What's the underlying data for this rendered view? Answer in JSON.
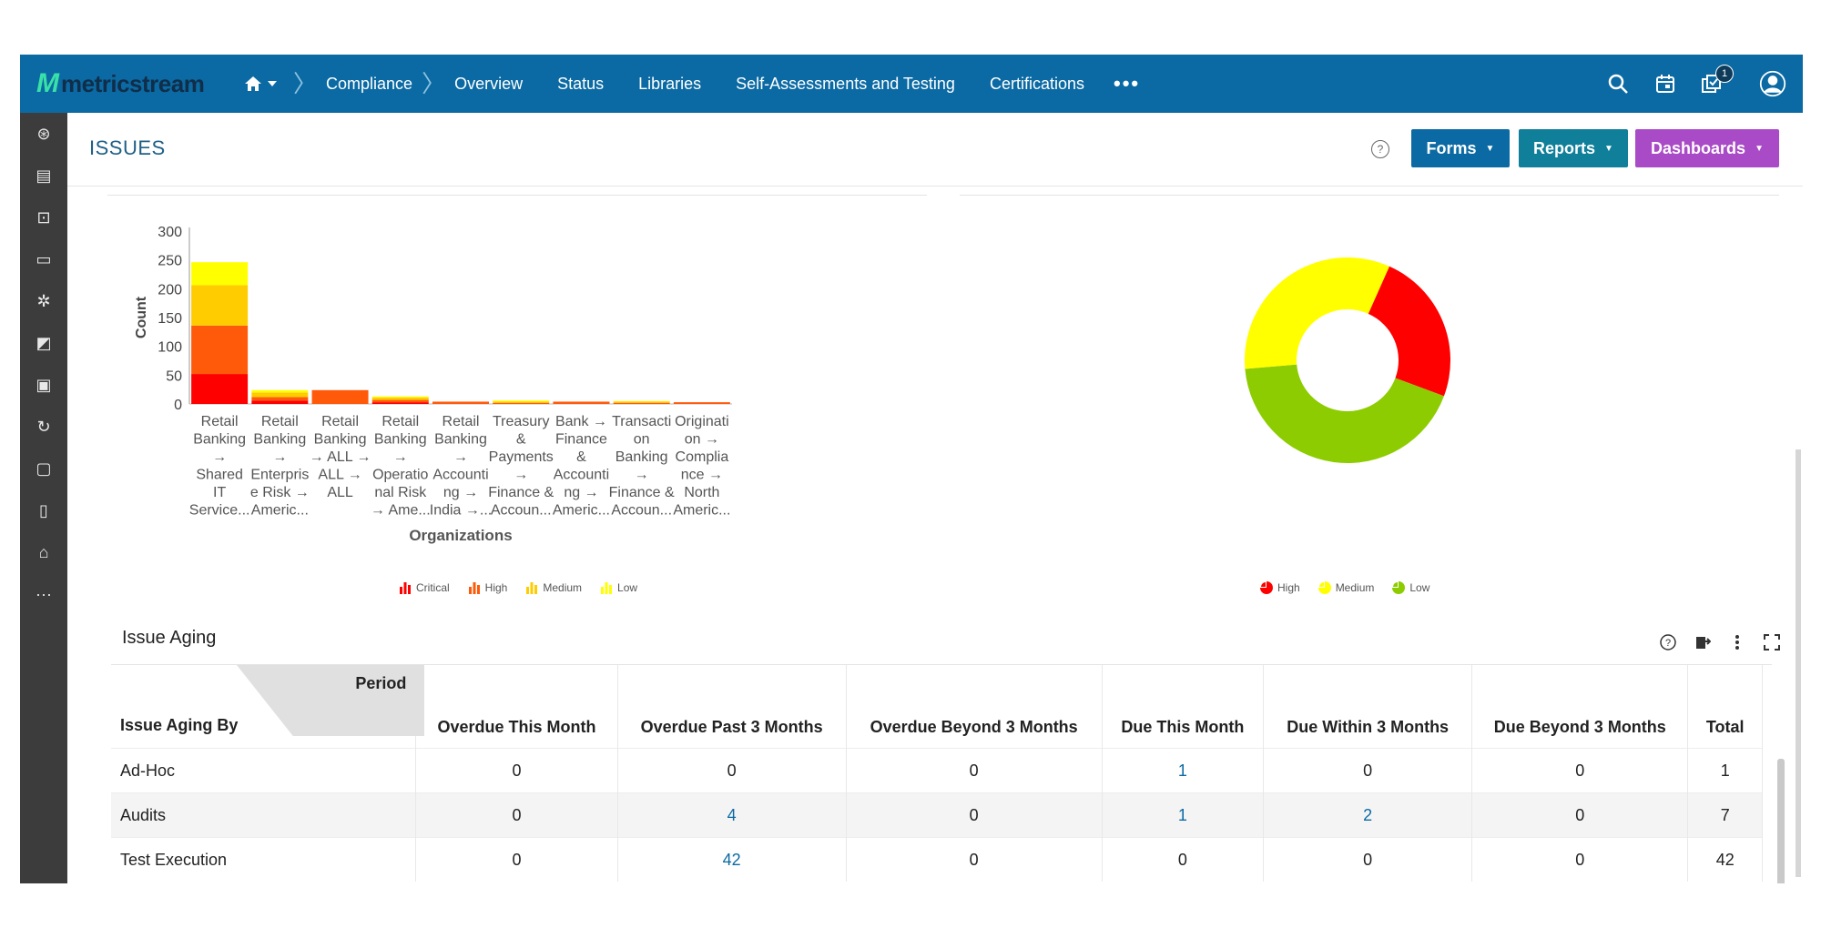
{
  "app": {
    "logo_text": "metricstream",
    "logo_mark": "M"
  },
  "nav": {
    "items": [
      {
        "label": "Compliance"
      },
      {
        "label": "Overview"
      },
      {
        "label": "Status"
      },
      {
        "label": "Libraries"
      },
      {
        "label": "Self-Assessments and Testing"
      },
      {
        "label": "Certifications"
      }
    ],
    "more": "•••",
    "notification_count": "1"
  },
  "page": {
    "title": "ISSUES",
    "help": "?",
    "buttons": {
      "forms": "Forms",
      "reports": "Reports",
      "dashboards": "Dashboards"
    }
  },
  "chart_data": [
    {
      "type": "bar",
      "stacked": true,
      "xlabel": "Organizations",
      "ylabel": "Count",
      "ylim": [
        0,
        300
      ],
      "yticks": [
        "300",
        "250",
        "200",
        "150",
        "100",
        "50",
        "0"
      ],
      "categories": [
        [
          "Retail",
          "Banking",
          "→",
          "Shared",
          "IT",
          "Service..."
        ],
        [
          "Retail",
          "Banking",
          "→",
          "Enterpris",
          "e Risk →",
          "Americ..."
        ],
        [
          "Retail",
          "Banking",
          "→ ALL →",
          "ALL →",
          "ALL"
        ],
        [
          "Retail",
          "Banking",
          "→",
          "Operatio",
          "nal Risk",
          "→ Ame..."
        ],
        [
          "Retail",
          "Banking",
          "→",
          "Accounti",
          "ng →",
          "India →..."
        ],
        [
          "Treasury",
          "&",
          "Payments",
          "→",
          "Finance &",
          "Accoun..."
        ],
        [
          "Bank →",
          "Finance",
          "&",
          "Accounti",
          "ng →",
          "Americ..."
        ],
        [
          "Transacti",
          "on",
          "Banking",
          "→",
          "Finance &",
          "Accoun..."
        ],
        [
          "Originati",
          "on →",
          "Complia",
          "nce →",
          "North",
          "Americ..."
        ]
      ],
      "series": [
        {
          "name": "Critical",
          "color": "#ff0000",
          "values": [
            52,
            6,
            0,
            3,
            0,
            0,
            0,
            0,
            0
          ]
        },
        {
          "name": "High",
          "color": "#ff5a0a",
          "values": [
            84,
            6,
            24,
            4,
            4,
            2,
            4,
            2,
            3
          ]
        },
        {
          "name": "Medium",
          "color": "#ffcc00",
          "values": [
            70,
            8,
            0,
            4,
            0,
            2,
            0,
            2,
            0
          ]
        },
        {
          "name": "Low",
          "color": "#ffff00",
          "values": [
            40,
            4,
            0,
            2,
            0,
            2,
            0,
            1,
            0
          ]
        }
      ],
      "legend": "bottom"
    },
    {
      "type": "pie",
      "donut": true,
      "slices": [
        {
          "name": "High",
          "value": 24,
          "color": "#ff0000"
        },
        {
          "name": "Low",
          "value": 43,
          "color": "#8ccc00"
        },
        {
          "name": "Medium",
          "value": 33,
          "color": "#ffff00"
        }
      ],
      "legend": "bottom"
    }
  ],
  "aging": {
    "title": "Issue Aging",
    "corner_period": "Period",
    "corner_by": "Issue Aging By",
    "columns": [
      "Overdue This Month",
      "Overdue Past 3 Months",
      "Overdue Beyond 3 Months",
      "Due This Month",
      "Due Within 3 Months",
      "Due Beyond 3 Months",
      "Total"
    ],
    "rows": [
      {
        "label": "Ad-Hoc",
        "cells": [
          "0",
          "0",
          "0",
          "1",
          "0",
          "0",
          "1"
        ]
      },
      {
        "label": "Audits",
        "cells": [
          "0",
          "4",
          "0",
          "1",
          "2",
          "0",
          "7"
        ]
      },
      {
        "label": "Test Execution",
        "cells": [
          "0",
          "42",
          "0",
          "0",
          "0",
          "0",
          "42"
        ]
      }
    ]
  }
}
